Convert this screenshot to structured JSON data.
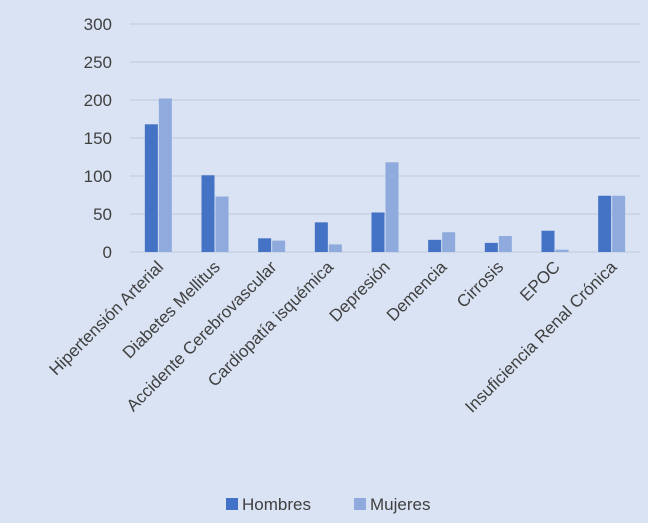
{
  "chart_data": {
    "type": "bar",
    "title": "",
    "xlabel": "",
    "ylabel": "",
    "ylim": [
      0,
      300
    ],
    "yticks": [
      0,
      50,
      100,
      150,
      200,
      250,
      300
    ],
    "grid": true,
    "legend_position": "bottom",
    "categories": [
      "Hipertensión Arterial",
      "Diabetes Mellitus",
      "Accidente Cerebrovascular",
      "Cardiopatía isquémica",
      "Depresión",
      "Demencia",
      "Cirrosis",
      "EPOC",
      "Insuficiencia Renal Crónica"
    ],
    "series": [
      {
        "name": "Hombres",
        "color": "#4472c4",
        "values": [
          168,
          101,
          18,
          39,
          52,
          16,
          12,
          28,
          74
        ]
      },
      {
        "name": "Mujeres",
        "color": "#8faadc",
        "values": [
          202,
          73,
          15,
          10,
          118,
          26,
          21,
          3,
          74
        ]
      }
    ]
  }
}
